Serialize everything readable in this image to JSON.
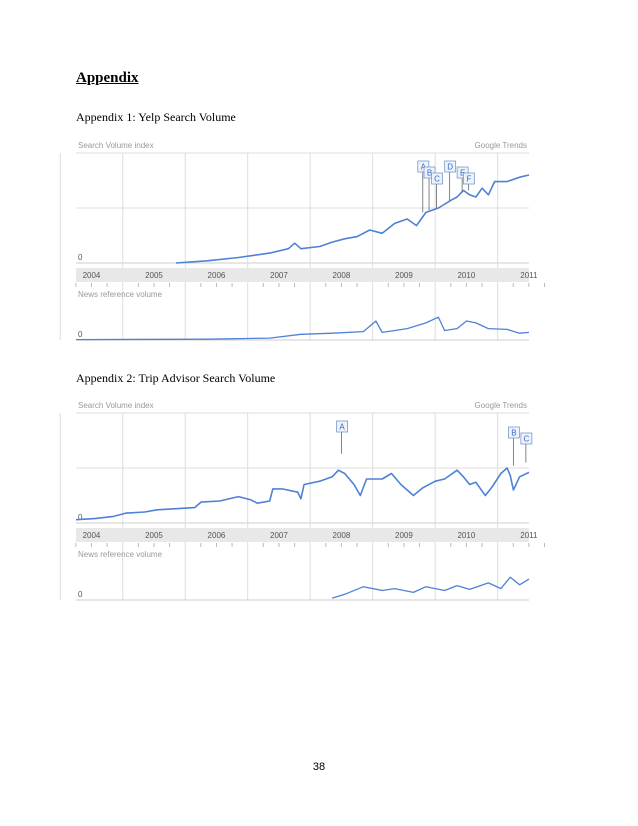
{
  "page": {
    "heading": "Appendix",
    "page_number": "38"
  },
  "figures": [
    {
      "caption": "Appendix 1: Yelp Search Volume"
    },
    {
      "caption": "Appendix 2: Trip Advisor Search Volume"
    }
  ],
  "colors": {
    "line": "#4f81d6",
    "grid": "#dddddd",
    "axis_band": "#e8e8e8",
    "label_gray": "#999999",
    "flag_text": "#3366cc",
    "flag_border": "#7799cc",
    "flag_fill": "#eef3fb"
  },
  "chart_data": [
    {
      "type": "line",
      "panel_labels": {
        "top_left": "Search Volume index",
        "top_right": "Google Trends",
        "bottom_left": "News reference volume"
      },
      "categories": [
        "2004",
        "2005",
        "2006",
        "2007",
        "2008",
        "2009",
        "2010",
        "2011"
      ],
      "x_range": [
        2003.9,
        2011.15
      ],
      "ylim": [
        0,
        1
      ],
      "zero_label": "0",
      "annotations": [
        {
          "label": "A",
          "x": 2009.45,
          "y_line": 0.46
        },
        {
          "label": "B",
          "x": 2009.55,
          "y_line": 0.48
        },
        {
          "label": "C",
          "x": 2009.67,
          "y_line": 0.5
        },
        {
          "label": "D",
          "x": 2009.88,
          "y_line": 0.56
        },
        {
          "label": "E",
          "x": 2010.08,
          "y_line": 0.64
        },
        {
          "label": "F",
          "x": 2010.18,
          "y_line": 0.66
        }
      ],
      "series": [
        {
          "values": [
            [
              2005.5,
              0.0
            ],
            [
              2006.0,
              0.02
            ],
            [
              2006.5,
              0.05
            ],
            [
              2007.0,
              0.09
            ],
            [
              2007.3,
              0.13
            ],
            [
              2007.4,
              0.18
            ],
            [
              2007.5,
              0.13
            ],
            [
              2007.8,
              0.15
            ],
            [
              2008.0,
              0.19
            ],
            [
              2008.2,
              0.22
            ],
            [
              2008.4,
              0.24
            ],
            [
              2008.6,
              0.3
            ],
            [
              2008.8,
              0.27
            ],
            [
              2009.0,
              0.36
            ],
            [
              2009.2,
              0.4
            ],
            [
              2009.35,
              0.34
            ],
            [
              2009.5,
              0.46
            ],
            [
              2009.7,
              0.5
            ],
            [
              2009.9,
              0.57
            ],
            [
              2010.0,
              0.6
            ],
            [
              2010.1,
              0.66
            ],
            [
              2010.2,
              0.62
            ],
            [
              2010.3,
              0.6
            ],
            [
              2010.4,
              0.68
            ],
            [
              2010.5,
              0.62
            ],
            [
              2010.6,
              0.74
            ],
            [
              2010.8,
              0.74
            ],
            [
              2011.0,
              0.78
            ],
            [
              2011.15,
              0.8
            ]
          ]
        }
      ],
      "news_series": [
        {
          "values": [
            [
              2003.9,
              0.01
            ],
            [
              2006.0,
              0.02
            ],
            [
              2007.0,
              0.05
            ],
            [
              2007.5,
              0.15
            ],
            [
              2008.0,
              0.18
            ],
            [
              2008.5,
              0.22
            ],
            [
              2008.7,
              0.5
            ],
            [
              2008.8,
              0.2
            ],
            [
              2009.2,
              0.3
            ],
            [
              2009.5,
              0.45
            ],
            [
              2009.7,
              0.6
            ],
            [
              2009.8,
              0.25
            ],
            [
              2010.0,
              0.3
            ],
            [
              2010.15,
              0.5
            ],
            [
              2010.3,
              0.45
            ],
            [
              2010.5,
              0.3
            ],
            [
              2010.8,
              0.28
            ],
            [
              2011.0,
              0.18
            ],
            [
              2011.15,
              0.2
            ]
          ]
        }
      ]
    },
    {
      "type": "line",
      "panel_labels": {
        "top_left": "Search Volume index",
        "top_right": "Google Trends",
        "bottom_left": "News reference volume"
      },
      "categories": [
        "2004",
        "2005",
        "2006",
        "2007",
        "2008",
        "2009",
        "2010",
        "2011"
      ],
      "x_range": [
        2003.9,
        2011.15
      ],
      "ylim": [
        0,
        1
      ],
      "zero_label": "0",
      "annotations": [
        {
          "label": "A",
          "x": 2008.15,
          "y_line": 0.63
        },
        {
          "label": "B",
          "x": 2010.9,
          "y_line": 0.52
        },
        {
          "label": "C",
          "x": 2011.1,
          "y_line": 0.55
        }
      ],
      "series": [
        {
          "values": [
            [
              2003.9,
              0.03
            ],
            [
              2004.2,
              0.04
            ],
            [
              2004.5,
              0.06
            ],
            [
              2004.7,
              0.09
            ],
            [
              2005.0,
              0.1
            ],
            [
              2005.2,
              0.12
            ],
            [
              2005.5,
              0.13
            ],
            [
              2005.8,
              0.14
            ],
            [
              2005.9,
              0.19
            ],
            [
              2006.2,
              0.2
            ],
            [
              2006.5,
              0.24
            ],
            [
              2006.7,
              0.21
            ],
            [
              2006.8,
              0.18
            ],
            [
              2007.0,
              0.2
            ],
            [
              2007.05,
              0.31
            ],
            [
              2007.2,
              0.31
            ],
            [
              2007.45,
              0.28
            ],
            [
              2007.5,
              0.22
            ],
            [
              2007.55,
              0.35
            ],
            [
              2007.8,
              0.38
            ],
            [
              2008.0,
              0.42
            ],
            [
              2008.1,
              0.48
            ],
            [
              2008.2,
              0.45
            ],
            [
              2008.35,
              0.35
            ],
            [
              2008.45,
              0.25
            ],
            [
              2008.55,
              0.4
            ],
            [
              2008.8,
              0.4
            ],
            [
              2008.95,
              0.45
            ],
            [
              2009.1,
              0.35
            ],
            [
              2009.3,
              0.25
            ],
            [
              2009.45,
              0.32
            ],
            [
              2009.65,
              0.38
            ],
            [
              2009.8,
              0.4
            ],
            [
              2010.0,
              0.48
            ],
            [
              2010.1,
              0.42
            ],
            [
              2010.2,
              0.35
            ],
            [
              2010.3,
              0.37
            ],
            [
              2010.45,
              0.25
            ],
            [
              2010.55,
              0.32
            ],
            [
              2010.7,
              0.45
            ],
            [
              2010.8,
              0.5
            ],
            [
              2010.85,
              0.43
            ],
            [
              2010.9,
              0.3
            ],
            [
              2011.0,
              0.42
            ],
            [
              2011.15,
              0.46
            ]
          ]
        }
      ],
      "news_series": [
        {
          "values": [
            [
              2008.0,
              0.05
            ],
            [
              2008.2,
              0.15
            ],
            [
              2008.5,
              0.35
            ],
            [
              2008.8,
              0.25
            ],
            [
              2009.0,
              0.3
            ],
            [
              2009.3,
              0.2
            ],
            [
              2009.5,
              0.35
            ],
            [
              2009.8,
              0.25
            ],
            [
              2010.0,
              0.38
            ],
            [
              2010.2,
              0.28
            ],
            [
              2010.5,
              0.45
            ],
            [
              2010.7,
              0.3
            ],
            [
              2010.85,
              0.6
            ],
            [
              2011.0,
              0.4
            ],
            [
              2011.15,
              0.55
            ]
          ]
        }
      ]
    }
  ]
}
